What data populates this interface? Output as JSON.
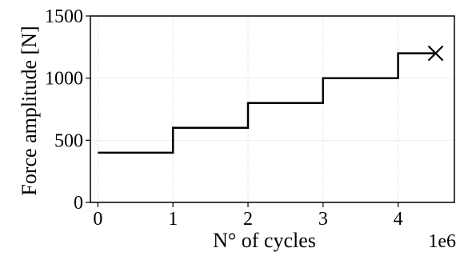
{
  "chart_data": {
    "type": "line",
    "title": "",
    "xlabel": "N° of cycles",
    "ylabel": "Force amplitude [N]",
    "x_offset_label": "1e6",
    "xlim": [
      -0.1,
      4.75
    ],
    "ylim": [
      0,
      1500
    ],
    "x_ticks": [
      0,
      1,
      2,
      3,
      4
    ],
    "x_tick_labels": [
      "0",
      "1",
      "2",
      "3",
      "4"
    ],
    "y_ticks": [
      0,
      500,
      1000,
      1500
    ],
    "y_tick_labels": [
      "0",
      "500",
      "1000",
      "1500"
    ],
    "grid": true,
    "legend": "none",
    "series": [
      {
        "style": "step",
        "color": "#000000",
        "x": [
          0,
          1,
          1,
          2,
          2,
          3,
          3,
          4,
          4,
          4.5
        ],
        "y": [
          400,
          400,
          600,
          600,
          800,
          800,
          1000,
          1000,
          1200,
          1200
        ]
      }
    ],
    "failure_marker": {
      "x": 4.5,
      "y": 1200,
      "marker": "x-icon",
      "color": "#000000"
    }
  }
}
